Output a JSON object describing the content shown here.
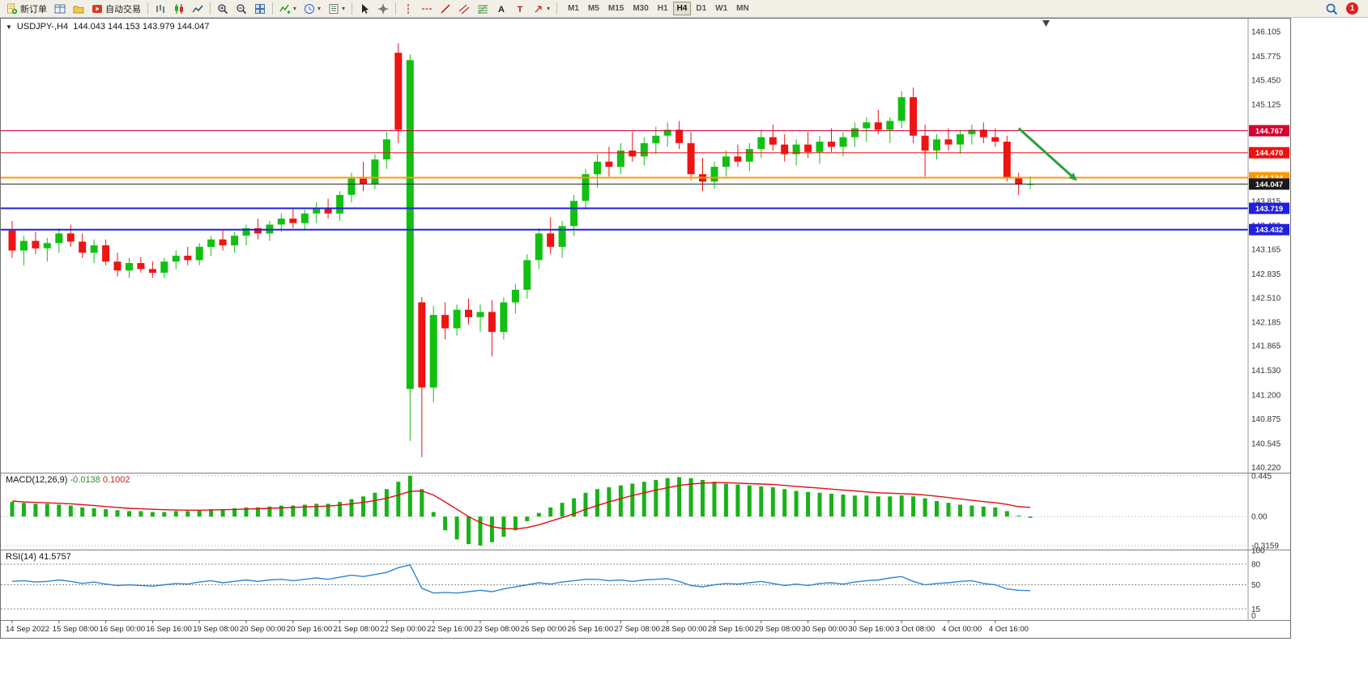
{
  "toolbar": {
    "buttons": [
      {
        "name": "new-order",
        "label": "新订单",
        "icon": "new-order-icon"
      },
      {
        "name": "market-watch",
        "icon": "market-watch-icon"
      },
      {
        "name": "navigator",
        "icon": "navigator-icon"
      },
      {
        "name": "auto-trading",
        "label": "自动交易",
        "icon": "auto-trading-icon"
      },
      {
        "type": "sep"
      },
      {
        "name": "bar-chart-mode",
        "icon": "bar-chart-icon"
      },
      {
        "name": "candle-chart-mode",
        "icon": "candle-chart-icon"
      },
      {
        "name": "line-chart-mode",
        "icon": "line-chart-icon"
      },
      {
        "type": "sep"
      },
      {
        "name": "zoom-in",
        "icon": "zoom-in-icon"
      },
      {
        "name": "zoom-out",
        "icon": "zoom-out-icon"
      },
      {
        "name": "tile-windows",
        "icon": "tile-windows-icon"
      },
      {
        "type": "sep"
      },
      {
        "name": "indicators",
        "icon": "indicators-icon",
        "caret": true
      },
      {
        "name": "periods",
        "icon": "clock-icon",
        "caret": true
      },
      {
        "name": "templates",
        "icon": "template-icon",
        "caret": true
      },
      {
        "type": "sep"
      },
      {
        "name": "cursor",
        "icon": "cursor-icon"
      },
      {
        "name": "crosshair",
        "icon": "crosshair-icon"
      },
      {
        "type": "sep"
      },
      {
        "name": "vertical-line",
        "icon": "vline-icon"
      },
      {
        "name": "horizontal-line",
        "icon": "hline-icon"
      },
      {
        "name": "trendline",
        "icon": "trendline-icon"
      },
      {
        "name": "equidistant-channel",
        "icon": "channel-icon"
      },
      {
        "name": "fibonacci-retracement",
        "icon": "fibo-icon"
      },
      {
        "name": "text",
        "icon": "text-icon"
      },
      {
        "name": "text-label",
        "icon": "label-icon"
      },
      {
        "name": "arrows",
        "icon": "arrows-icon",
        "caret": true
      },
      {
        "type": "sep"
      }
    ],
    "timeframes": [
      "M1",
      "M5",
      "M15",
      "M30",
      "H1",
      "H4",
      "D1",
      "W1",
      "MN"
    ],
    "active_timeframe": "H4",
    "notification_count": "1"
  },
  "chart": {
    "collapse_arrow": "▼",
    "symbol_period": "USDJPY-,H4",
    "ohlc": "144.043 144.153 143.979 144.047",
    "up_color": "#12c012",
    "down_color": "#ee1414",
    "background": "#ffffff"
  },
  "price_axis": {
    "labels": [
      "146.105",
      "145.775",
      "145.450",
      "145.125",
      "144.800",
      "144.475",
      "144.150",
      "143.815",
      "143.490",
      "143.165",
      "142.835",
      "142.510",
      "142.185",
      "141.865",
      "141.530",
      "141.200",
      "140.875",
      "140.545",
      "140.220"
    ]
  },
  "hlines": [
    {
      "price": 144.767,
      "label": "144.767",
      "color": "#d40032",
      "width": 1
    },
    {
      "price": 144.47,
      "label": "144.470",
      "color": "#ee1111",
      "width": 1
    },
    {
      "price": 144.134,
      "label": "144.134",
      "color": "#ff9900",
      "width": 2
    },
    {
      "price": 143.719,
      "label": "143.719",
      "color": "#2020dd",
      "width": 2
    },
    {
      "price": 143.432,
      "label": "143.432",
      "color": "#2020dd",
      "width": 2
    }
  ],
  "current_price": {
    "value": 144.047,
    "label": "144.047",
    "color": "#222222"
  },
  "arrow_annotation": {
    "from_candle": 86,
    "from_price": 144.8,
    "to_candle": 91,
    "to_price": 144.09,
    "color": "#2f9e3f"
  },
  "chart_data": {
    "type": "candlestick",
    "symbol": "USDJPY-",
    "timeframe": "H4",
    "price_range": [
      140.15,
      146.27
    ],
    "candles": [
      [
        143.42,
        143.55,
        143.05,
        143.15
      ],
      [
        143.15,
        143.35,
        142.95,
        143.28
      ],
      [
        143.28,
        143.4,
        143.1,
        143.18
      ],
      [
        143.18,
        143.32,
        143.0,
        143.25
      ],
      [
        143.25,
        143.45,
        143.12,
        143.38
      ],
      [
        143.38,
        143.5,
        143.2,
        143.27
      ],
      [
        143.27,
        143.38,
        143.05,
        143.12
      ],
      [
        143.12,
        143.3,
        142.98,
        143.22
      ],
      [
        143.22,
        143.3,
        142.95,
        143.0
      ],
      [
        143.0,
        143.12,
        142.8,
        142.88
      ],
      [
        142.88,
        143.05,
        142.78,
        142.98
      ],
      [
        142.98,
        143.06,
        142.85,
        142.9
      ],
      [
        142.9,
        143.0,
        142.78,
        142.85
      ],
      [
        142.85,
        143.05,
        142.78,
        143.0
      ],
      [
        143.0,
        143.15,
        142.9,
        143.08
      ],
      [
        143.08,
        143.2,
        142.95,
        143.02
      ],
      [
        143.02,
        143.25,
        142.95,
        143.2
      ],
      [
        143.2,
        143.35,
        143.08,
        143.3
      ],
      [
        143.3,
        143.42,
        143.15,
        143.22
      ],
      [
        143.22,
        143.4,
        143.12,
        143.35
      ],
      [
        143.35,
        143.5,
        143.22,
        143.45
      ],
      [
        143.45,
        143.58,
        143.3,
        143.38
      ],
      [
        143.38,
        143.55,
        143.28,
        143.5
      ],
      [
        143.5,
        143.65,
        143.4,
        143.58
      ],
      [
        143.58,
        143.72,
        143.45,
        143.52
      ],
      [
        143.52,
        143.7,
        143.42,
        143.65
      ],
      [
        143.65,
        143.8,
        143.52,
        143.72
      ],
      [
        143.72,
        143.85,
        143.58,
        143.65
      ],
      [
        143.65,
        143.95,
        143.55,
        143.9
      ],
      [
        143.9,
        144.2,
        143.8,
        144.12
      ],
      [
        144.12,
        144.35,
        143.95,
        144.05
      ],
      [
        144.05,
        144.45,
        143.98,
        144.38
      ],
      [
        144.38,
        144.75,
        144.25,
        144.65
      ],
      [
        145.82,
        145.95,
        144.6,
        144.78
      ],
      [
        141.28,
        145.8,
        140.58,
        145.72
      ],
      [
        142.45,
        142.52,
        140.36,
        141.3
      ],
      [
        141.3,
        142.4,
        141.1,
        142.28
      ],
      [
        142.28,
        142.45,
        141.95,
        142.1
      ],
      [
        142.1,
        142.42,
        142.0,
        142.35
      ],
      [
        142.35,
        142.5,
        142.15,
        142.25
      ],
      [
        142.25,
        142.42,
        142.05,
        142.32
      ],
      [
        142.32,
        142.48,
        141.72,
        142.05
      ],
      [
        142.05,
        142.52,
        141.95,
        142.45
      ],
      [
        142.45,
        142.7,
        142.3,
        142.62
      ],
      [
        142.62,
        143.1,
        142.5,
        143.02
      ],
      [
        143.02,
        143.45,
        142.9,
        143.38
      ],
      [
        143.38,
        143.6,
        143.1,
        143.2
      ],
      [
        143.2,
        143.55,
        143.05,
        143.48
      ],
      [
        143.48,
        143.9,
        143.35,
        143.82
      ],
      [
        143.82,
        144.25,
        143.7,
        144.18
      ],
      [
        144.18,
        144.45,
        144.0,
        144.35
      ],
      [
        144.35,
        144.55,
        144.15,
        144.28
      ],
      [
        144.28,
        144.6,
        144.18,
        144.5
      ],
      [
        144.5,
        144.75,
        144.35,
        144.42
      ],
      [
        144.42,
        144.68,
        144.3,
        144.6
      ],
      [
        144.6,
        144.82,
        144.45,
        144.7
      ],
      [
        144.7,
        144.88,
        144.55,
        144.78
      ],
      [
        144.78,
        144.9,
        144.52,
        144.6
      ],
      [
        144.6,
        144.75,
        144.1,
        144.18
      ],
      [
        144.18,
        144.4,
        143.95,
        144.08
      ],
      [
        144.08,
        144.35,
        143.98,
        144.28
      ],
      [
        144.28,
        144.5,
        144.15,
        144.42
      ],
      [
        144.42,
        144.58,
        144.28,
        144.35
      ],
      [
        144.35,
        144.6,
        144.22,
        144.52
      ],
      [
        144.52,
        144.78,
        144.4,
        144.68
      ],
      [
        144.68,
        144.85,
        144.5,
        144.58
      ],
      [
        144.58,
        144.72,
        144.35,
        144.45
      ],
      [
        144.45,
        144.65,
        144.3,
        144.58
      ],
      [
        144.58,
        144.75,
        144.4,
        144.48
      ],
      [
        144.48,
        144.7,
        144.32,
        144.62
      ],
      [
        144.62,
        144.8,
        144.48,
        144.55
      ],
      [
        144.55,
        144.75,
        144.42,
        144.68
      ],
      [
        144.68,
        144.88,
        144.55,
        144.8
      ],
      [
        144.8,
        144.95,
        144.62,
        144.88
      ],
      [
        144.88,
        145.05,
        144.72,
        144.78
      ],
      [
        144.78,
        144.95,
        144.6,
        144.9
      ],
      [
        144.9,
        145.3,
        144.8,
        145.22
      ],
      [
        145.22,
        145.35,
        144.6,
        144.7
      ],
      [
        144.7,
        144.85,
        144.15,
        144.5
      ],
      [
        144.5,
        144.72,
        144.38,
        144.65
      ],
      [
        144.65,
        144.8,
        144.5,
        144.58
      ],
      [
        144.58,
        144.78,
        144.45,
        144.72
      ],
      [
        144.72,
        144.85,
        144.58,
        144.78
      ],
      [
        144.78,
        144.88,
        144.6,
        144.68
      ],
      [
        144.68,
        144.8,
        144.55,
        144.62
      ],
      [
        144.62,
        144.7,
        144.08,
        144.13
      ],
      [
        144.13,
        144.2,
        143.9,
        144.04
      ],
      [
        144.043,
        144.153,
        143.979,
        144.047
      ]
    ],
    "time_labels": [
      "14 Sep 2022",
      "15 Sep 08:00",
      "16 Sep 00:00",
      "16 Sep 16:00",
      "19 Sep 08:00",
      "20 Sep 00:00",
      "20 Sep 16:00",
      "21 Sep 08:00",
      "22 Sep 00:00",
      "22 Sep 16:00",
      "23 Sep 08:00",
      "26 Sep 00:00",
      "26 Sep 16:00",
      "27 Sep 08:00",
      "28 Sep 00:00",
      "28 Sep 16:00",
      "29 Sep 08:00",
      "30 Sep 00:00",
      "30 Sep 16:00",
      "3 Oct 08:00",
      "4 Oct 00:00",
      "4 Oct 16:00"
    ],
    "candles_per_label": 4,
    "macd": {
      "title": "MACD(12,26,9)",
      "value_main": "-0.0138",
      "value_signal": "0.1002",
      "range": [
        -0.36,
        0.47
      ],
      "axis": [
        {
          "label": "0.445",
          "value": 0.445
        },
        {
          "label": "0.00",
          "value": 0
        },
        {
          "label": "-0.3159",
          "value": -0.3159
        }
      ],
      "histogram_color": "#19b219",
      "signal_color": "#e01010",
      "histogram": [
        0.16,
        0.15,
        0.14,
        0.14,
        0.13,
        0.12,
        0.1,
        0.09,
        0.08,
        0.07,
        0.06,
        0.06,
        0.05,
        0.05,
        0.06,
        0.06,
        0.07,
        0.08,
        0.08,
        0.09,
        0.1,
        0.1,
        0.11,
        0.12,
        0.12,
        0.13,
        0.14,
        0.14,
        0.16,
        0.19,
        0.22,
        0.26,
        0.3,
        0.38,
        0.445,
        0.3,
        0.05,
        -0.15,
        -0.25,
        -0.3,
        -0.3159,
        -0.28,
        -0.22,
        -0.15,
        -0.05,
        0.04,
        0.1,
        0.15,
        0.2,
        0.26,
        0.3,
        0.32,
        0.34,
        0.36,
        0.38,
        0.4,
        0.42,
        0.43,
        0.42,
        0.4,
        0.38,
        0.36,
        0.35,
        0.34,
        0.33,
        0.32,
        0.3,
        0.28,
        0.27,
        0.26,
        0.25,
        0.24,
        0.23,
        0.23,
        0.22,
        0.22,
        0.23,
        0.22,
        0.2,
        0.17,
        0.15,
        0.13,
        0.12,
        0.11,
        0.1,
        0.06,
        0.01,
        -0.0138
      ],
      "signal": [
        0.17,
        0.16,
        0.155,
        0.15,
        0.145,
        0.14,
        0.13,
        0.12,
        0.11,
        0.1,
        0.09,
        0.085,
        0.08,
        0.075,
        0.072,
        0.07,
        0.07,
        0.072,
        0.075,
        0.078,
        0.082,
        0.086,
        0.09,
        0.095,
        0.1,
        0.105,
        0.11,
        0.115,
        0.125,
        0.14,
        0.155,
        0.175,
        0.2,
        0.235,
        0.275,
        0.28,
        0.235,
        0.16,
        0.08,
        0.0,
        -0.065,
        -0.11,
        -0.13,
        -0.135,
        -0.12,
        -0.09,
        -0.05,
        -0.01,
        0.03,
        0.08,
        0.12,
        0.16,
        0.195,
        0.23,
        0.26,
        0.29,
        0.315,
        0.34,
        0.355,
        0.365,
        0.37,
        0.37,
        0.365,
        0.36,
        0.355,
        0.35,
        0.34,
        0.33,
        0.32,
        0.31,
        0.3,
        0.29,
        0.28,
        0.27,
        0.26,
        0.255,
        0.25,
        0.245,
        0.235,
        0.222,
        0.208,
        0.193,
        0.178,
        0.164,
        0.151,
        0.133,
        0.108,
        0.1002
      ]
    },
    "rsi": {
      "title": "RSI(14)",
      "value": "41.5757",
      "range": [
        0,
        100
      ],
      "axis": [
        {
          "label": "100",
          "value": 100
        },
        {
          "label": "80",
          "value": 80
        },
        {
          "label": "50",
          "value": 50
        },
        {
          "label": "15",
          "value": 15
        },
        {
          "label": "0",
          "value": 0
        }
      ],
      "levels": [
        80,
        50,
        15
      ],
      "line_color": "#2e86d0",
      "series": [
        55,
        56,
        54,
        55,
        57,
        55,
        52,
        54,
        51,
        49,
        50,
        49,
        48,
        50,
        52,
        51,
        54,
        56,
        53,
        55,
        57,
        55,
        57,
        58,
        56,
        58,
        60,
        58,
        61,
        64,
        62,
        65,
        68,
        75,
        79,
        45,
        38,
        39,
        38,
        40,
        42,
        40,
        44,
        47,
        50,
        53,
        51,
        54,
        56,
        58,
        58,
        56,
        57,
        55,
        57,
        58,
        59,
        55,
        49,
        47,
        50,
        52,
        51,
        53,
        55,
        52,
        49,
        51,
        49,
        52,
        53,
        51,
        54,
        56,
        57,
        60,
        62,
        55,
        50,
        52,
        53,
        55,
        56,
        52,
        50,
        44,
        42,
        41.58
      ]
    }
  }
}
